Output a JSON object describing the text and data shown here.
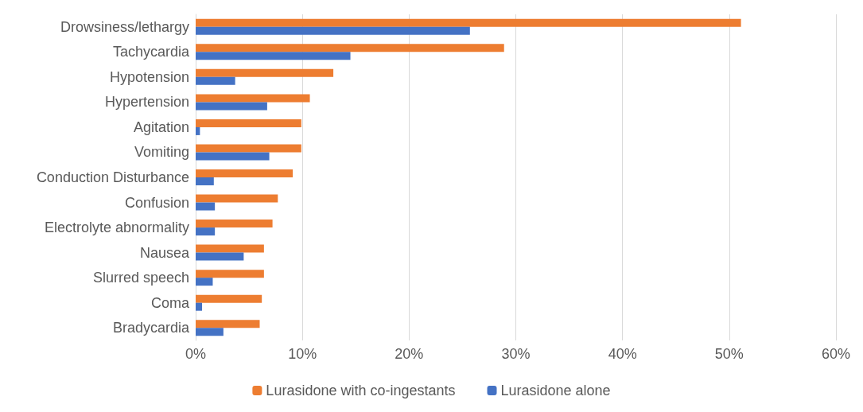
{
  "chart_data": {
    "type": "bar",
    "orientation": "horizontal",
    "categories": [
      "Drowsiness/lethargy",
      "Tachycardia",
      "Hypotension",
      "Hypertension",
      "Agitation",
      "Vomiting",
      "Conduction Disturbance",
      "Confusion",
      "Electrolyte abnormality",
      "Nausea",
      "Slurred speech",
      "Coma",
      "Bradycardia"
    ],
    "series": [
      {
        "name": "Lurasidone with co-ingestants",
        "color": "#ed7d31",
        "values": [
          51.1,
          28.9,
          12.9,
          10.7,
          9.9,
          9.9,
          9.1,
          7.7,
          7.2,
          6.4,
          6.4,
          6.2,
          6.0
        ]
      },
      {
        "name": "Lurasidone alone",
        "color": "#4472c4",
        "values": [
          25.7,
          14.5,
          3.7,
          6.7,
          0.4,
          6.9,
          1.7,
          1.8,
          1.8,
          4.5,
          1.6,
          0.6,
          2.6
        ]
      }
    ],
    "xlim": [
      0,
      60
    ],
    "xticks": [
      {
        "value": 0,
        "label": "0%"
      },
      {
        "value": 10,
        "label": "10%"
      },
      {
        "value": 20,
        "label": "20%"
      },
      {
        "value": 30,
        "label": "30%"
      },
      {
        "value": 40,
        "label": "40%"
      },
      {
        "value": 50,
        "label": "50%"
      },
      {
        "value": 60,
        "label": "60%"
      }
    ],
    "grid": "x",
    "legend": "bottom"
  }
}
